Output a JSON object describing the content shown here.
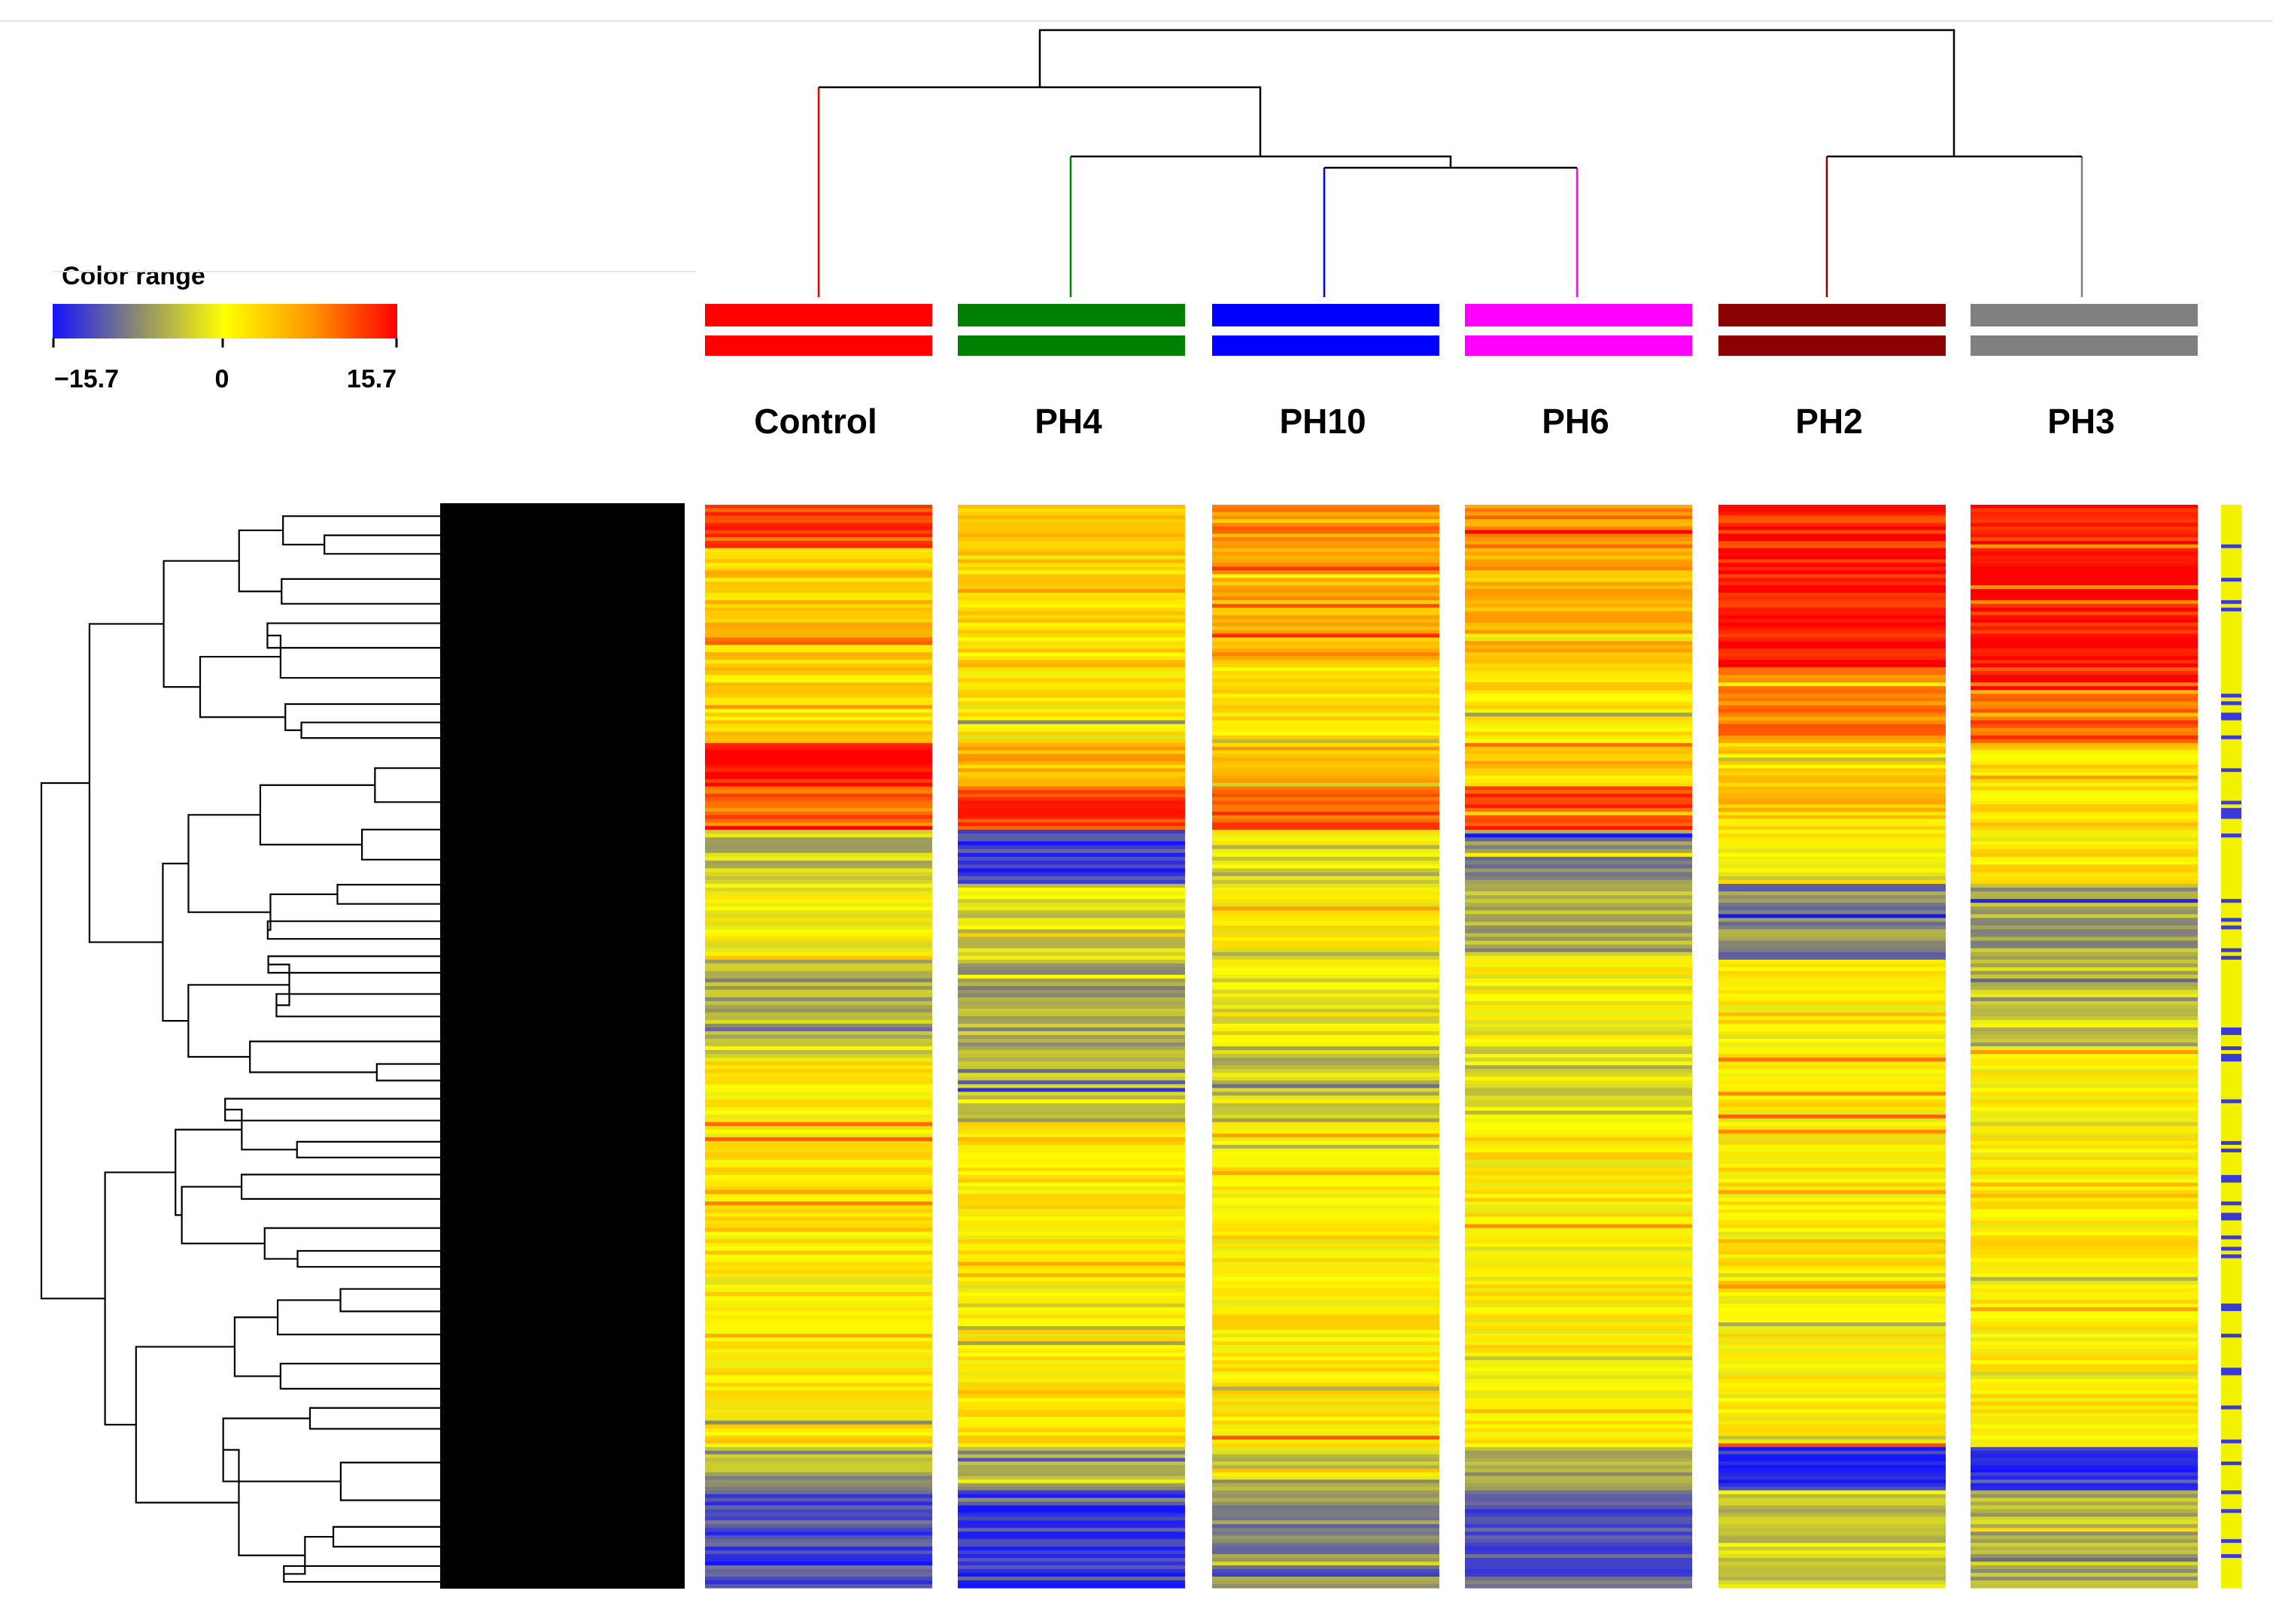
{
  "chart_data": {
    "type": "heatmap",
    "title": "",
    "legend": {
      "title": "Color range",
      "min": -15.7,
      "mid": 0,
      "max": 15.7,
      "tick_labels": [
        "−15.7",
        "0",
        "15.7"
      ],
      "colors": [
        "#1c10e8",
        "#f6f700",
        "#ff0000"
      ],
      "scale_stops": [
        "#1414ff",
        "#8c8c6e",
        "#ffff00",
        "#ff9600",
        "#ff0000"
      ]
    },
    "columns": [
      {
        "name": "Control",
        "color": "#ff0000"
      },
      {
        "name": "PH4",
        "color": "#008000"
      },
      {
        "name": "PH10",
        "color": "#0000ff"
      },
      {
        "name": "PH6",
        "color": "#ff00ff"
      },
      {
        "name": "PH2",
        "color": "#8b0000"
      },
      {
        "name": "PH3",
        "color": "#808080"
      }
    ],
    "sample_dendrogram": {
      "merges": [
        {
          "left": "PH10",
          "right": "PH6",
          "height": 0.25
        },
        {
          "left": "PH4",
          "right": "PH10+PH6",
          "height": 0.31
        },
        {
          "left": "PH2",
          "right": "PH3",
          "height": 0.31
        },
        {
          "left": "Control",
          "right": "PH4+PH10+PH6",
          "height": 0.48
        },
        {
          "left": "Control+PH4+PH10+PH6",
          "right": "PH2+PH3",
          "height": 0.56
        }
      ]
    },
    "row_cluster_side_colors": [
      "yellow",
      "blue"
    ],
    "row_blocks": [
      {
        "share": 0.04,
        "values": [
          12,
          4,
          8,
          8,
          14,
          14
        ]
      },
      {
        "share": 0.11,
        "values": [
          4,
          3,
          6,
          5,
          15,
          15
        ]
      },
      {
        "share": 0.07,
        "values": [
          3,
          1,
          2,
          2,
          9,
          11
        ]
      },
      {
        "share": 0.04,
        "values": [
          15,
          5,
          5,
          4,
          3,
          2
        ]
      },
      {
        "share": 0.04,
        "values": [
          10,
          12,
          12,
          12,
          4,
          2
        ]
      },
      {
        "share": 0.05,
        "values": [
          -4,
          -13,
          -3,
          -8,
          1,
          1
        ]
      },
      {
        "share": 0.07,
        "values": [
          0,
          -3,
          0,
          -6,
          -8,
          -6
        ]
      },
      {
        "share": 0.08,
        "values": [
          -6,
          -6,
          -1,
          0,
          1,
          -4
        ]
      },
      {
        "share": 0.07,
        "values": [
          1,
          -5,
          -4,
          -2,
          1,
          1
        ]
      },
      {
        "share": 0.3,
        "values": [
          1,
          1,
          1,
          1,
          1,
          1
        ]
      },
      {
        "share": 0.04,
        "values": [
          -6,
          -7,
          -3,
          -6,
          -14,
          -13
        ]
      },
      {
        "share": 0.09,
        "values": [
          -12,
          -13,
          -8,
          -11,
          -3,
          -5
        ]
      }
    ]
  }
}
